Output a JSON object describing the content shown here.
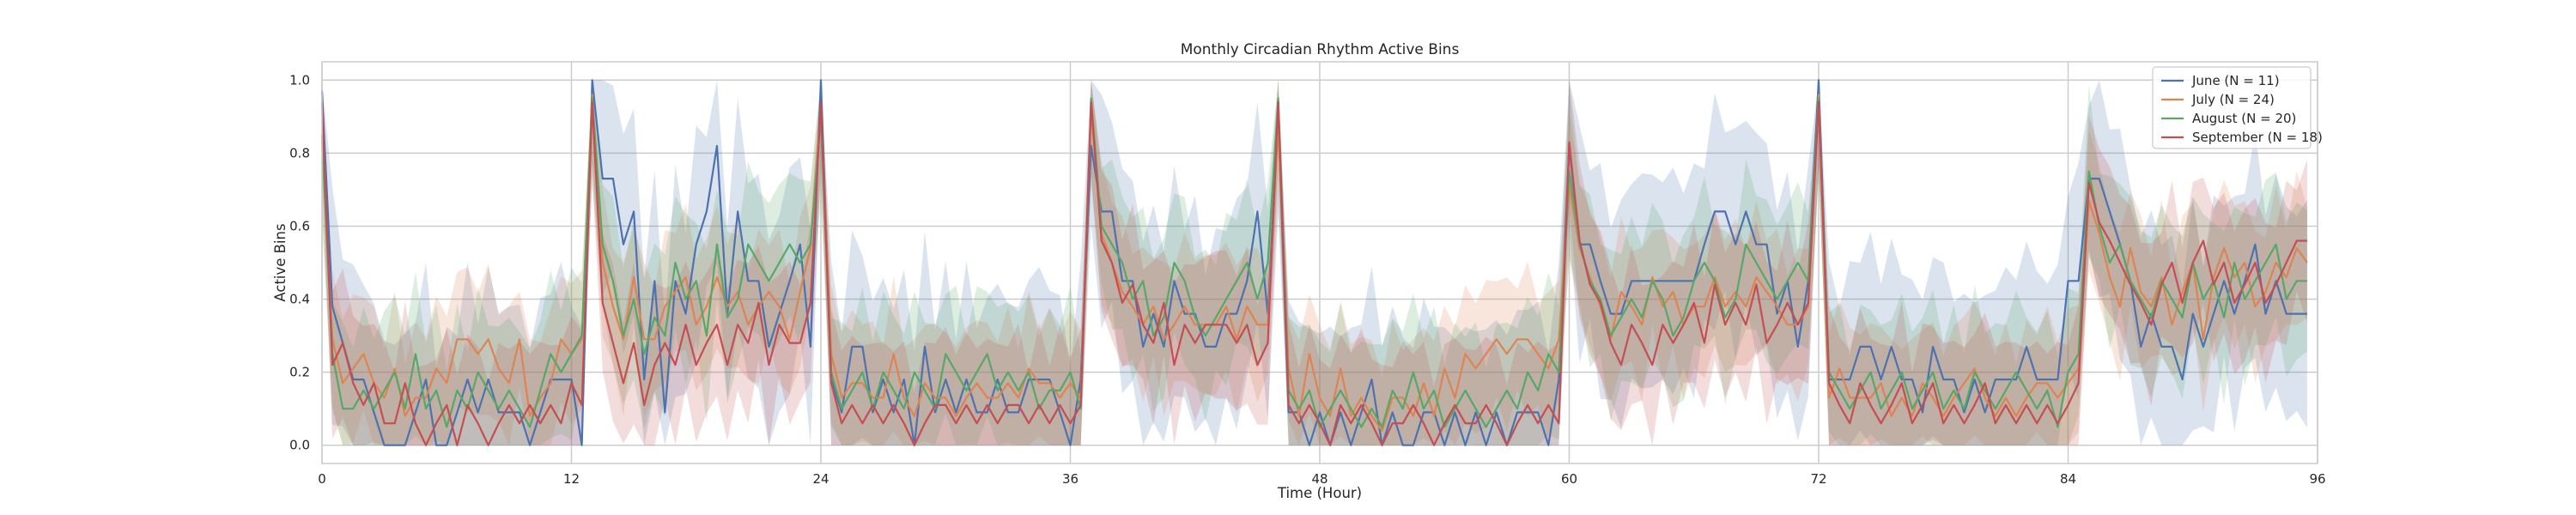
{
  "chart_data": {
    "type": "line",
    "title": "Monthly Circadian Rhythm Active Bins",
    "xlabel": "Time (Hour)",
    "ylabel": "Active Bins",
    "xlim": [
      0,
      96
    ],
    "ylim": [
      -0.05,
      1.05
    ],
    "x_ticks": [
      0,
      12,
      24,
      36,
      48,
      60,
      72,
      84,
      96
    ],
    "y_ticks": [
      "0.0",
      "0.2",
      "0.4",
      "0.6",
      "0.8",
      "1.0"
    ],
    "grid": true,
    "legend_position": "top-right",
    "x_step": 0.5,
    "series": [
      {
        "name": "June (N = 11)",
        "color": "#4c72b0",
        "values": [
          0.97,
          0.38,
          0.28,
          0.18,
          0.18,
          0.09,
          0.0,
          0.0,
          0.0,
          0.09,
          0.18,
          0.0,
          0.0,
          0.09,
          0.18,
          0.09,
          0.18,
          0.09,
          0.09,
          0.09,
          0.0,
          0.09,
          0.18,
          0.18,
          0.18,
          0.0,
          1.0,
          0.73,
          0.73,
          0.55,
          0.64,
          0.18,
          0.45,
          0.09,
          0.45,
          0.36,
          0.55,
          0.64,
          0.82,
          0.36,
          0.64,
          0.45,
          0.45,
          0.27,
          0.36,
          0.45,
          0.55,
          0.27,
          1.0,
          0.18,
          0.09,
          0.27,
          0.27,
          0.09,
          0.18,
          0.09,
          0.18,
          0.0,
          0.27,
          0.09,
          0.18,
          0.09,
          0.18,
          0.09,
          0.09,
          0.18,
          0.09,
          0.09,
          0.18,
          0.18,
          0.18,
          0.09,
          0.0,
          0.18,
          0.82,
          0.64,
          0.64,
          0.45,
          0.45,
          0.27,
          0.36,
          0.27,
          0.45,
          0.36,
          0.36,
          0.27,
          0.27,
          0.36,
          0.36,
          0.45,
          0.64,
          0.36,
          0.91,
          0.09,
          0.09,
          0.0,
          0.09,
          0.0,
          0.09,
          0.0,
          0.09,
          0.18,
          0.0,
          0.09,
          0.0,
          0.0,
          0.09,
          0.09,
          0.0,
          0.09,
          0.0,
          0.09,
          0.0,
          0.09,
          0.0,
          0.09,
          0.09,
          0.09,
          0.0,
          0.18,
          0.82,
          0.55,
          0.55,
          0.45,
          0.36,
          0.36,
          0.45,
          0.45,
          0.45,
          0.45,
          0.45,
          0.45,
          0.45,
          0.55,
          0.64,
          0.64,
          0.55,
          0.64,
          0.55,
          0.55,
          0.36,
          0.45,
          0.27,
          0.45,
          1.0,
          0.18,
          0.18,
          0.18,
          0.27,
          0.27,
          0.18,
          0.27,
          0.18,
          0.18,
          0.09,
          0.27,
          0.18,
          0.18,
          0.09,
          0.18,
          0.09,
          0.18,
          0.18,
          0.18,
          0.27,
          0.18,
          0.18,
          0.18,
          0.45,
          0.45,
          0.73,
          0.73,
          0.64,
          0.55,
          0.45,
          0.27,
          0.36,
          0.27,
          0.27,
          0.18,
          0.36,
          0.27,
          0.36,
          0.45,
          0.36,
          0.45,
          0.55,
          0.36,
          0.45,
          0.36,
          0.36,
          0.36
        ]
      },
      {
        "name": "July (N = 24)",
        "color": "#dd8452",
        "values": [
          0.83,
          0.29,
          0.17,
          0.21,
          0.25,
          0.17,
          0.13,
          0.21,
          0.08,
          0.13,
          0.13,
          0.21,
          0.17,
          0.29,
          0.29,
          0.25,
          0.29,
          0.21,
          0.17,
          0.29,
          0.08,
          0.13,
          0.17,
          0.29,
          0.25,
          0.29,
          0.96,
          0.5,
          0.38,
          0.29,
          0.46,
          0.29,
          0.29,
          0.38,
          0.42,
          0.46,
          0.33,
          0.38,
          0.46,
          0.38,
          0.42,
          0.33,
          0.38,
          0.42,
          0.38,
          0.29,
          0.42,
          0.54,
          0.92,
          0.25,
          0.13,
          0.17,
          0.17,
          0.13,
          0.13,
          0.25,
          0.13,
          0.08,
          0.17,
          0.13,
          0.13,
          0.08,
          0.13,
          0.17,
          0.13,
          0.13,
          0.17,
          0.13,
          0.21,
          0.17,
          0.17,
          0.13,
          0.17,
          0.13,
          0.92,
          0.58,
          0.5,
          0.42,
          0.38,
          0.33,
          0.38,
          0.29,
          0.33,
          0.38,
          0.33,
          0.33,
          0.33,
          0.38,
          0.29,
          0.38,
          0.33,
          0.33,
          0.88,
          0.21,
          0.08,
          0.25,
          0.13,
          0.08,
          0.21,
          0.08,
          0.13,
          0.08,
          0.04,
          0.13,
          0.13,
          0.08,
          0.17,
          0.08,
          0.21,
          0.13,
          0.25,
          0.21,
          0.25,
          0.29,
          0.25,
          0.29,
          0.29,
          0.25,
          0.21,
          0.29,
          0.71,
          0.54,
          0.46,
          0.38,
          0.29,
          0.42,
          0.38,
          0.33,
          0.46,
          0.38,
          0.42,
          0.33,
          0.38,
          0.38,
          0.46,
          0.38,
          0.42,
          0.38,
          0.46,
          0.42,
          0.38,
          0.33,
          0.33,
          0.38,
          0.96,
          0.13,
          0.21,
          0.13,
          0.13,
          0.13,
          0.17,
          0.08,
          0.13,
          0.08,
          0.17,
          0.13,
          0.08,
          0.13,
          0.17,
          0.21,
          0.13,
          0.08,
          0.13,
          0.08,
          0.13,
          0.17,
          0.17,
          0.13,
          0.17,
          0.21,
          0.67,
          0.58,
          0.46,
          0.38,
          0.54,
          0.42,
          0.38,
          0.46,
          0.33,
          0.42,
          0.5,
          0.29,
          0.46,
          0.54,
          0.46,
          0.5,
          0.38,
          0.42,
          0.5,
          0.46,
          0.54,
          0.5
        ]
      },
      {
        "name": "August (N = 20)",
        "color": "#55a868",
        "values": [
          0.85,
          0.25,
          0.1,
          0.1,
          0.15,
          0.1,
          0.15,
          0.2,
          0.1,
          0.25,
          0.1,
          0.15,
          0.05,
          0.15,
          0.1,
          0.2,
          0.15,
          0.1,
          0.15,
          0.1,
          0.05,
          0.15,
          0.25,
          0.2,
          0.25,
          0.3,
          0.95,
          0.55,
          0.45,
          0.3,
          0.4,
          0.25,
          0.35,
          0.3,
          0.5,
          0.4,
          0.45,
          0.3,
          0.55,
          0.35,
          0.4,
          0.55,
          0.5,
          0.45,
          0.5,
          0.55,
          0.5,
          0.55,
          0.9,
          0.2,
          0.1,
          0.15,
          0.2,
          0.1,
          0.2,
          0.15,
          0.1,
          0.2,
          0.15,
          0.1,
          0.25,
          0.2,
          0.15,
          0.2,
          0.25,
          0.15,
          0.2,
          0.15,
          0.2,
          0.1,
          0.15,
          0.15,
          0.2,
          0.1,
          0.95,
          0.6,
          0.55,
          0.5,
          0.4,
          0.45,
          0.3,
          0.35,
          0.5,
          0.45,
          0.35,
          0.3,
          0.35,
          0.4,
          0.45,
          0.5,
          0.4,
          0.5,
          0.95,
          0.15,
          0.1,
          0.15,
          0.05,
          0.1,
          0.15,
          0.1,
          0.05,
          0.1,
          0.05,
          0.15,
          0.1,
          0.2,
          0.1,
          0.15,
          0.05,
          0.1,
          0.15,
          0.1,
          0.05,
          0.1,
          0.15,
          0.1,
          0.2,
          0.15,
          0.25,
          0.2,
          0.75,
          0.55,
          0.45,
          0.4,
          0.3,
          0.35,
          0.4,
          0.35,
          0.45,
          0.4,
          0.3,
          0.35,
          0.45,
          0.5,
          0.45,
          0.35,
          0.4,
          0.55,
          0.5,
          0.45,
          0.4,
          0.45,
          0.5,
          0.45,
          0.95,
          0.2,
          0.15,
          0.1,
          0.15,
          0.2,
          0.1,
          0.15,
          0.2,
          0.1,
          0.15,
          0.2,
          0.1,
          0.15,
          0.1,
          0.2,
          0.15,
          0.1,
          0.15,
          0.2,
          0.15,
          0.1,
          0.15,
          0.05,
          0.2,
          0.25,
          0.75,
          0.6,
          0.5,
          0.55,
          0.45,
          0.4,
          0.35,
          0.45,
          0.4,
          0.35,
          0.5,
          0.4,
          0.45,
          0.35,
          0.5,
          0.4,
          0.45,
          0.5,
          0.55,
          0.4,
          0.45,
          0.45
        ]
      },
      {
        "name": "September (N = 18)",
        "color": "#c44e52",
        "values": [
          0.94,
          0.22,
          0.28,
          0.17,
          0.11,
          0.17,
          0.06,
          0.06,
          0.17,
          0.06,
          0.0,
          0.06,
          0.11,
          0.0,
          0.11,
          0.06,
          0.0,
          0.06,
          0.11,
          0.06,
          0.11,
          0.06,
          0.11,
          0.06,
          0.17,
          0.11,
          0.94,
          0.39,
          0.28,
          0.17,
          0.28,
          0.11,
          0.22,
          0.28,
          0.22,
          0.33,
          0.22,
          0.28,
          0.33,
          0.22,
          0.33,
          0.28,
          0.39,
          0.22,
          0.33,
          0.28,
          0.28,
          0.39,
          0.94,
          0.17,
          0.06,
          0.11,
          0.06,
          0.11,
          0.06,
          0.11,
          0.06,
          0.0,
          0.06,
          0.11,
          0.11,
          0.06,
          0.11,
          0.06,
          0.11,
          0.06,
          0.11,
          0.11,
          0.06,
          0.11,
          0.06,
          0.11,
          0.06,
          0.11,
          0.94,
          0.56,
          0.5,
          0.39,
          0.44,
          0.33,
          0.28,
          0.39,
          0.22,
          0.33,
          0.28,
          0.33,
          0.33,
          0.33,
          0.28,
          0.33,
          0.22,
          0.28,
          0.94,
          0.11,
          0.06,
          0.11,
          0.06,
          0.0,
          0.11,
          0.06,
          0.11,
          0.06,
          0.0,
          0.06,
          0.06,
          0.11,
          0.06,
          0.0,
          0.06,
          0.11,
          0.06,
          0.06,
          0.11,
          0.06,
          0.0,
          0.06,
          0.11,
          0.06,
          0.11,
          0.06,
          0.83,
          0.56,
          0.44,
          0.39,
          0.28,
          0.22,
          0.33,
          0.28,
          0.22,
          0.33,
          0.28,
          0.33,
          0.39,
          0.28,
          0.44,
          0.33,
          0.39,
          0.33,
          0.44,
          0.28,
          0.33,
          0.39,
          0.33,
          0.39,
          0.94,
          0.17,
          0.11,
          0.06,
          0.17,
          0.11,
          0.06,
          0.11,
          0.17,
          0.06,
          0.11,
          0.17,
          0.06,
          0.11,
          0.06,
          0.11,
          0.17,
          0.06,
          0.11,
          0.06,
          0.11,
          0.06,
          0.11,
          0.06,
          0.11,
          0.17,
          0.72,
          0.61,
          0.56,
          0.5,
          0.44,
          0.39,
          0.33,
          0.44,
          0.5,
          0.39,
          0.5,
          0.56,
          0.44,
          0.5,
          0.39,
          0.44,
          0.5,
          0.39,
          0.44,
          0.5,
          0.56,
          0.56
        ]
      }
    ]
  }
}
